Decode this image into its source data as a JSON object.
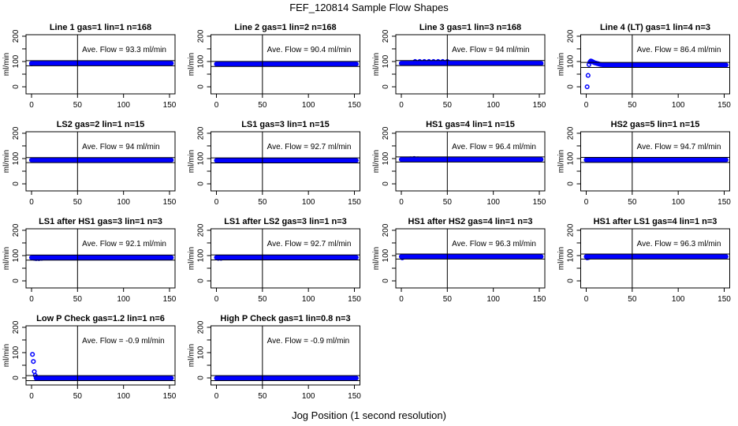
{
  "title": "FEF_120814  Sample Flow Shapes",
  "xlabel": "Jog Position (1 second resolution)",
  "colors": {
    "points": "#0000ff",
    "lines": "#000000"
  },
  "chart_data": {
    "type": "scatter",
    "layout": "small-multiples 4 columns",
    "shared": {
      "ylabel": "ml/min",
      "xlim": [
        -6,
        156
      ],
      "ylim": [
        -28,
        206
      ],
      "xticks": [
        0,
        50,
        100,
        150
      ],
      "xtick_labels": [
        "0",
        "50",
        "100",
        "150"
      ],
      "yticks": [
        0,
        50,
        100,
        150,
        200
      ],
      "ytick_labels": [
        "0",
        "",
        "100",
        "",
        "200"
      ],
      "vertical_reference_x": 50,
      "horizontal_reference_band": "ave flow ± 10",
      "marker": "open circle",
      "grid": false
    },
    "panels": [
      {
        "title": "Line 1 gas=1 lin=1 n=168",
        "ave_flow": 93.3,
        "ave_label": "Ave. Flow =  93.3  ml/min",
        "early_points": [
          [
            0,
            91
          ],
          [
            1,
            92
          ],
          [
            2,
            93
          ]
        ],
        "steady": {
          "x_from": 0,
          "x_to": 152,
          "y": 93
        }
      },
      {
        "title": "Line 2 gas=1 lin=2 n=168",
        "ave_flow": 90.4,
        "ave_label": "Ave. Flow =  90.4  ml/min",
        "early_points": [],
        "steady": {
          "x_from": 0,
          "x_to": 152,
          "y": 90
        }
      },
      {
        "title": "Line 3 gas=1 lin=3 n=168",
        "ave_flow": 94,
        "ave_label": "Ave. Flow =  94  ml/min",
        "early_points": [
          [
            15,
            100
          ],
          [
            20,
            100
          ],
          [
            25,
            100
          ],
          [
            30,
            100
          ],
          [
            35,
            100
          ],
          [
            40,
            100
          ],
          [
            45,
            100
          ],
          [
            50,
            100
          ]
        ],
        "steady": {
          "x_from": 0,
          "x_to": 152,
          "y": 93
        }
      },
      {
        "title": "Line 4 (LT) gas=1 lin=4 n=3",
        "ave_flow": 86.4,
        "ave_label": "Ave. Flow =  86.4  ml/min",
        "early_points": [
          [
            1,
            0
          ],
          [
            2,
            45
          ],
          [
            3,
            88
          ],
          [
            4,
            98
          ],
          [
            5,
            102
          ],
          [
            6,
            101
          ],
          [
            7,
            99
          ],
          [
            8,
            97
          ],
          [
            9,
            95
          ],
          [
            10,
            94
          ],
          [
            11,
            93
          ],
          [
            12,
            92
          ],
          [
            13,
            91
          ],
          [
            14,
            90
          ],
          [
            15,
            89
          ],
          [
            16,
            88
          ],
          [
            18,
            87
          ],
          [
            20,
            86
          ]
        ],
        "steady": {
          "x_from": 20,
          "x_to": 152,
          "y": 86
        }
      },
      {
        "title": "LS2 gas=2 lin=1 n=15",
        "ave_flow": 94,
        "ave_label": "Ave. Flow =  94  ml/min",
        "early_points": [],
        "steady": {
          "x_from": 0,
          "x_to": 152,
          "y": 94
        }
      },
      {
        "title": "LS1 gas=3 lin=1 n=15",
        "ave_flow": 92.7,
        "ave_label": "Ave. Flow =  92.7  ml/min",
        "early_points": [],
        "steady": {
          "x_from": 0,
          "x_to": 152,
          "y": 92.5
        }
      },
      {
        "title": "HS1 gas=4 lin=1 n=15",
        "ave_flow": 96.4,
        "ave_label": "Ave. Flow =  96.4  ml/min",
        "early_points": [
          [
            10,
            99
          ],
          [
            14,
            100
          ],
          [
            18,
            99
          ]
        ],
        "steady": {
          "x_from": 0,
          "x_to": 152,
          "y": 96.5
        }
      },
      {
        "title": "HS2 gas=5 lin=1 n=15",
        "ave_flow": 94.7,
        "ave_label": "Ave. Flow =  94.7  ml/min",
        "early_points": [],
        "steady": {
          "x_from": 0,
          "x_to": 152,
          "y": 95
        }
      },
      {
        "title": "LS1 after HS1 gas=3 lin=1 n=3",
        "ave_flow": 92.1,
        "ave_label": "Ave. Flow =  92.1  ml/min",
        "early_points": [
          [
            3,
            89
          ],
          [
            5,
            88
          ],
          [
            8,
            88
          ],
          [
            11,
            89
          ]
        ],
        "steady": {
          "x_from": 0,
          "x_to": 152,
          "y": 92
        }
      },
      {
        "title": "LS1 after LS2 gas=3 lin=1 n=3",
        "ave_flow": 92.7,
        "ave_label": "Ave. Flow =  92.7  ml/min",
        "early_points": [
          [
            2,
            89
          ],
          [
            5,
            89
          ]
        ],
        "steady": {
          "x_from": 0,
          "x_to": 152,
          "y": 92.5
        }
      },
      {
        "title": "HS1 after HS2 gas=4 lin=1 n=3",
        "ave_flow": 96.3,
        "ave_label": "Ave. Flow =  96.3  ml/min",
        "early_points": [
          [
            1,
            91
          ],
          [
            2,
            93
          ]
        ],
        "steady": {
          "x_from": 0,
          "x_to": 152,
          "y": 96
        }
      },
      {
        "title": "HS1 after LS1 gas=4 lin=1 n=3",
        "ave_flow": 96.3,
        "ave_label": "Ave. Flow =  96.3  ml/min",
        "early_points": [
          [
            1,
            91
          ],
          [
            2,
            92
          ],
          [
            3,
            93
          ]
        ],
        "steady": {
          "x_from": 0,
          "x_to": 152,
          "y": 96
        }
      },
      {
        "title": "Low P Check gas=1.2 lin=1 n=6",
        "ave_flow": -0.9,
        "ave_label": "Ave. Flow =  -0.9  ml/min",
        "early_points": [
          [
            1,
            93
          ],
          [
            2,
            65
          ],
          [
            3,
            25
          ],
          [
            4,
            10
          ],
          [
            5,
            3
          ]
        ],
        "steady": {
          "x_from": 5,
          "x_to": 152,
          "y": -1
        }
      },
      {
        "title": "High P Check gas=1 lin=0.8 n=3",
        "ave_flow": -0.9,
        "ave_label": "Ave. Flow =  -0.9  ml/min",
        "early_points": [],
        "steady": {
          "x_from": 0,
          "x_to": 152,
          "y": -1
        }
      }
    ]
  }
}
